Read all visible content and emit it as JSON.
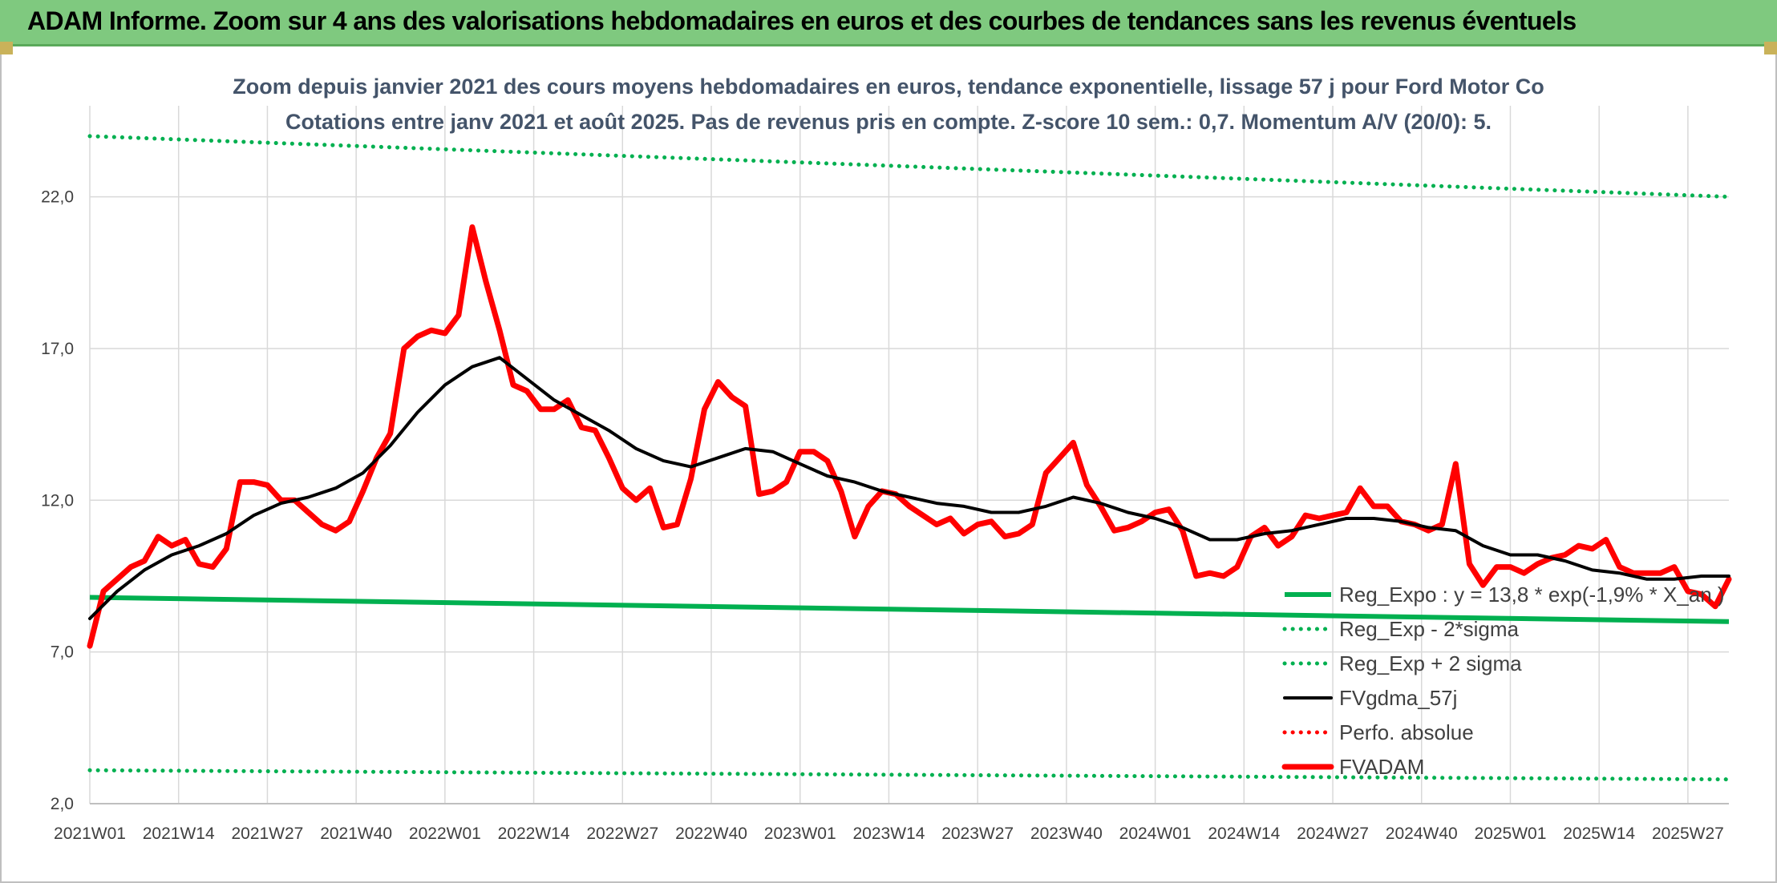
{
  "header": {
    "title": "ADAM Informe. Zoom sur 4 ans des valorisations hebdomadaires en euros et des courbes de tendances sans les revenus éventuels"
  },
  "chart_data": {
    "type": "line",
    "title": "Zoom depuis janvier 2021 des cours moyens hebdomadaires en euros, tendance exponentielle, lissage 57 j pour Ford Motor Co",
    "subtitle": "Cotations entre janv 2021 et août 2025. Pas de revenus pris en compte. Z-score 10 sem.: 0,7. Momentum A/V (20/0): 5.",
    "xlabel": "",
    "ylabel": "",
    "ylim": [
      2,
      25
    ],
    "yticks": [
      "2,0",
      "7,0",
      "12,0",
      "17,0",
      "22,0"
    ],
    "xticks": [
      "2021W01",
      "2021W14",
      "2021W27",
      "2021W40",
      "2022W01",
      "2022W14",
      "2022W27",
      "2022W40",
      "2023W01",
      "2023W14",
      "2023W27",
      "2023W40",
      "2024W01",
      "2024W14",
      "2024W27",
      "2024W40",
      "2025W01",
      "2025W14",
      "2025W27"
    ],
    "x_range_weeks": [
      0,
      240
    ],
    "grid": true,
    "legend_position": "bottom-right",
    "series": [
      {
        "name": "Reg_Expo : y = 13,8 * exp(-1,9% * X_an )",
        "color": "#00b050",
        "style": "solid",
        "x": [
          0,
          240
        ],
        "values": [
          8.8,
          8.0
        ]
      },
      {
        "name": "Reg_Exp - 2*sigma",
        "color": "#00b050",
        "style": "dotted",
        "x": [
          0,
          240
        ],
        "values": [
          3.1,
          2.8
        ]
      },
      {
        "name": "Reg_Exp + 2 sigma",
        "color": "#00b050",
        "style": "dotted",
        "x": [
          0,
          240
        ],
        "values": [
          24.0,
          22.0
        ]
      },
      {
        "name": "FVgdma_57j",
        "color": "#000000",
        "style": "solid",
        "x": [
          0,
          4,
          8,
          12,
          16,
          20,
          24,
          28,
          32,
          36,
          40,
          44,
          48,
          52,
          56,
          60,
          64,
          68,
          72,
          76,
          80,
          84,
          88,
          92,
          96,
          100,
          104,
          108,
          112,
          116,
          120,
          124,
          128,
          132,
          136,
          140,
          144,
          148,
          152,
          156,
          160,
          164,
          168,
          172,
          176,
          180,
          184,
          188,
          192,
          196,
          200,
          204,
          208,
          212,
          216,
          220,
          224,
          228,
          232,
          236,
          240
        ],
        "values": [
          8.1,
          9.0,
          9.7,
          10.2,
          10.5,
          10.9,
          11.5,
          11.9,
          12.1,
          12.4,
          12.9,
          13.8,
          14.9,
          15.8,
          16.4,
          16.7,
          16.0,
          15.3,
          14.8,
          14.3,
          13.7,
          13.3,
          13.1,
          13.4,
          13.7,
          13.6,
          13.2,
          12.8,
          12.6,
          12.3,
          12.1,
          11.9,
          11.8,
          11.6,
          11.6,
          11.8,
          12.1,
          11.9,
          11.6,
          11.4,
          11.1,
          10.7,
          10.7,
          10.9,
          11.0,
          11.2,
          11.4,
          11.4,
          11.3,
          11.1,
          11.0,
          10.5,
          10.2,
          10.2,
          10.0,
          9.7,
          9.6,
          9.4,
          9.4,
          9.5,
          9.5
        ]
      },
      {
        "name": "Perfo. absolue",
        "color": "#ff0000",
        "style": "dotted",
        "x": [],
        "values": []
      },
      {
        "name": "FVADAM",
        "color": "#ff0000",
        "style": "solid",
        "x": [
          0,
          2,
          4,
          6,
          8,
          10,
          12,
          14,
          16,
          18,
          20,
          22,
          24,
          26,
          28,
          30,
          32,
          34,
          36,
          38,
          40,
          42,
          44,
          46,
          48,
          50,
          52,
          54,
          56,
          58,
          60,
          62,
          64,
          66,
          68,
          70,
          72,
          74,
          76,
          78,
          80,
          82,
          84,
          86,
          88,
          90,
          92,
          94,
          96,
          98,
          100,
          102,
          104,
          106,
          108,
          110,
          112,
          114,
          116,
          118,
          120,
          122,
          124,
          126,
          128,
          130,
          132,
          134,
          136,
          138,
          140,
          142,
          144,
          146,
          148,
          150,
          152,
          154,
          156,
          158,
          160,
          162,
          164,
          166,
          168,
          170,
          172,
          174,
          176,
          178,
          180,
          182,
          184,
          186,
          188,
          190,
          192,
          194,
          196,
          198,
          200,
          202,
          204,
          206,
          208,
          210,
          212,
          214,
          216,
          218,
          220,
          222,
          224,
          226,
          228,
          230,
          232,
          234,
          236,
          238,
          240
        ],
        "values": [
          7.2,
          9.0,
          9.4,
          9.8,
          10.0,
          10.8,
          10.5,
          10.7,
          9.9,
          9.8,
          10.4,
          12.6,
          12.6,
          12.5,
          12.0,
          12.0,
          11.6,
          11.2,
          11.0,
          11.3,
          12.3,
          13.4,
          14.2,
          17.0,
          17.4,
          17.6,
          17.5,
          18.1,
          21.0,
          19.2,
          17.6,
          15.8,
          15.6,
          15.0,
          15.0,
          15.3,
          14.4,
          14.3,
          13.4,
          12.4,
          12.0,
          12.4,
          11.1,
          11.2,
          12.7,
          15.0,
          15.9,
          15.4,
          15.1,
          12.2,
          12.3,
          12.6,
          13.6,
          13.6,
          13.3,
          12.3,
          10.8,
          11.8,
          12.3,
          12.2,
          11.8,
          11.5,
          11.2,
          11.4,
          10.9,
          11.2,
          11.3,
          10.8,
          10.9,
          11.2,
          12.9,
          13.4,
          13.9,
          12.5,
          11.8,
          11.0,
          11.1,
          11.3,
          11.6,
          11.7,
          11.0,
          9.5,
          9.6,
          9.5,
          9.8,
          10.8,
          11.1,
          10.5,
          10.8,
          11.5,
          11.4,
          11.5,
          11.6,
          12.4,
          11.8,
          11.8,
          11.3,
          11.2,
          11.0,
          11.2,
          13.2,
          9.9,
          9.2,
          9.8,
          9.8,
          9.6,
          9.9,
          10.1,
          10.2,
          10.5,
          10.4,
          10.7,
          9.8,
          9.6,
          9.6,
          9.6,
          9.8,
          9.0,
          8.9,
          8.5,
          9.4
        ]
      }
    ]
  }
}
